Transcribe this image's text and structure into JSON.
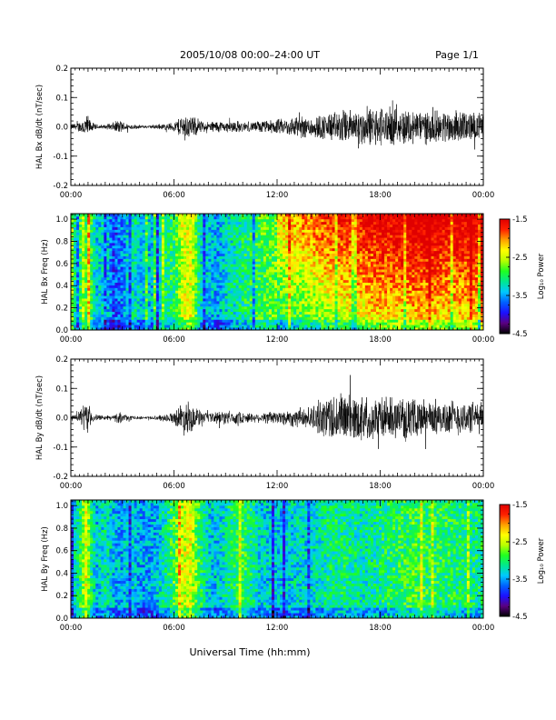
{
  "header": {
    "title": "2005/10/08   00:00–24:00 UT",
    "page": "Page 1/1"
  },
  "xaxis": {
    "label": "Universal Time (hh:mm)",
    "range_hours": [
      0,
      24
    ],
    "tick_hours": [
      0,
      6,
      12,
      18,
      24
    ],
    "tick_labels": [
      "00:00",
      "06:00",
      "12:00",
      "18:00",
      "00:00"
    ]
  },
  "colorbar": {
    "label": "Log₁₀ Power",
    "range": [
      -4.5,
      -1.5
    ],
    "ticks": [
      -1.5,
      -2.5,
      -3.5,
      -4.5
    ],
    "tick_labels": [
      "-1.5",
      "-2.5",
      "-3.5",
      "-4.5"
    ],
    "colormap": [
      "#000000",
      "#5a0080",
      "#1c10ff",
      "#0060ff",
      "#00c8ff",
      "#00e890",
      "#20ff20",
      "#b8ff00",
      "#ffff00",
      "#ffa000",
      "#ff2000",
      "#e00000"
    ]
  },
  "chart_data": [
    {
      "type": "line",
      "name": "bx-wave",
      "ylabel": "HAL Bx dB/dt (nT/sec)",
      "ylim": [
        -0.2,
        0.2
      ],
      "yticks": [
        -0.2,
        -0.1,
        0.0,
        0.1,
        0.2
      ],
      "ytick_labels": [
        "-0.2",
        "-0.1",
        "0.0",
        "0.1",
        "0.2"
      ],
      "envelope": {
        "hours": [
          0,
          0.3,
          0.6,
          0.9,
          1.2,
          1.5,
          2.0,
          2.5,
          2.8,
          3.2,
          3.6,
          4.0,
          4.5,
          5.0,
          5.5,
          6.0,
          6.3,
          6.6,
          7.0,
          7.4,
          7.8,
          8.2,
          8.6,
          9.0,
          9.5,
          10.0,
          10.5,
          11.0,
          11.5,
          12.0,
          12.5,
          13.0,
          13.5,
          14.0,
          14.5,
          15.0,
          15.5,
          16.0,
          16.5,
          17.0,
          17.5,
          18.0,
          18.5,
          19.0,
          19.5,
          20.0,
          20.5,
          21.0,
          21.5,
          22.0,
          22.5,
          23.0,
          23.5,
          24.0
        ],
        "amplitude": [
          0.01,
          0.012,
          0.02,
          0.045,
          0.015,
          0.008,
          0.006,
          0.015,
          0.022,
          0.012,
          0.008,
          0.006,
          0.005,
          0.008,
          0.01,
          0.015,
          0.03,
          0.045,
          0.035,
          0.025,
          0.015,
          0.018,
          0.02,
          0.015,
          0.022,
          0.015,
          0.015,
          0.02,
          0.02,
          0.025,
          0.025,
          0.035,
          0.035,
          0.035,
          0.04,
          0.045,
          0.05,
          0.055,
          0.055,
          0.06,
          0.06,
          0.065,
          0.06,
          0.055,
          0.06,
          0.055,
          0.055,
          0.05,
          0.05,
          0.055,
          0.05,
          0.05,
          0.045,
          0.045
        ]
      }
    },
    {
      "type": "heatmap",
      "name": "bx-spec",
      "ylabel": "HAL Bx Freq (Hz)",
      "ylim": [
        0,
        1.05
      ],
      "yticks": [
        0.0,
        0.2,
        0.4,
        0.6,
        0.8,
        1.0
      ],
      "ytick_labels": [
        "0.0",
        "0.2",
        "0.4",
        "0.6",
        "0.8",
        "1.0"
      ],
      "zlim": [
        -4.5,
        -1.5
      ],
      "level_profile": {
        "hours": [
          0,
          0.5,
          0.9,
          1.2,
          1.5,
          2.0,
          2.5,
          3.0,
          3.5,
          4.0,
          4.5,
          5.0,
          5.5,
          6.0,
          6.5,
          7.0,
          7.5,
          8.0,
          8.5,
          9.0,
          10.0,
          11.0,
          12.0,
          13.0,
          14.0,
          15.0,
          16.0,
          17.0,
          18.0,
          19.0,
          20.0,
          21.0,
          22.0,
          23.0,
          24.0
        ],
        "log_power": [
          -3.2,
          -3.0,
          -2.3,
          -3.0,
          -3.4,
          -3.2,
          -3.8,
          -3.6,
          -3.2,
          -3.3,
          -3.4,
          -3.3,
          -3.1,
          -3.0,
          -2.5,
          -2.4,
          -3.2,
          -3.4,
          -3.5,
          -3.3,
          -3.1,
          -2.9,
          -2.8,
          -2.6,
          -2.5,
          -2.3,
          -2.2,
          -2.1,
          -2.0,
          -2.0,
          -1.9,
          -1.9,
          -2.0,
          -2.0,
          -2.0
        ]
      }
    },
    {
      "type": "line",
      "name": "by-wave",
      "ylabel": "HAL By dB/dt (nT/sec)",
      "ylim": [
        -0.2,
        0.2
      ],
      "yticks": [
        -0.2,
        -0.1,
        0.0,
        0.1,
        0.2
      ],
      "ytick_labels": [
        "-0.2",
        "-0.1",
        "0.0",
        "0.1",
        "0.2"
      ],
      "envelope": {
        "hours": [
          0,
          0.3,
          0.6,
          0.9,
          1.2,
          1.5,
          2.0,
          2.5,
          2.8,
          3.2,
          3.6,
          4.0,
          4.5,
          5.0,
          5.5,
          6.0,
          6.3,
          6.6,
          7.0,
          7.4,
          7.8,
          8.2,
          8.6,
          9.0,
          9.5,
          10.0,
          10.5,
          11.0,
          11.5,
          12.0,
          12.5,
          13.0,
          13.5,
          14.0,
          14.5,
          15.0,
          15.5,
          16.0,
          16.5,
          17.0,
          17.5,
          18.0,
          18.5,
          19.0,
          19.5,
          20.0,
          20.5,
          21.0,
          21.5,
          22.0,
          22.5,
          23.0,
          23.5,
          24.0
        ],
        "amplitude": [
          0.008,
          0.01,
          0.025,
          0.06,
          0.02,
          0.01,
          0.006,
          0.01,
          0.018,
          0.01,
          0.006,
          0.005,
          0.005,
          0.007,
          0.012,
          0.018,
          0.04,
          0.055,
          0.045,
          0.03,
          0.015,
          0.015,
          0.025,
          0.02,
          0.022,
          0.018,
          0.015,
          0.015,
          0.02,
          0.022,
          0.025,
          0.03,
          0.03,
          0.035,
          0.055,
          0.075,
          0.08,
          0.08,
          0.075,
          0.07,
          0.07,
          0.07,
          0.065,
          0.065,
          0.06,
          0.06,
          0.06,
          0.055,
          0.055,
          0.06,
          0.055,
          0.055,
          0.05,
          0.05
        ]
      }
    },
    {
      "type": "heatmap",
      "name": "by-spec",
      "ylabel": "HAL By Freq (Hz)",
      "ylim": [
        0,
        1.05
      ],
      "yticks": [
        0.0,
        0.2,
        0.4,
        0.6,
        0.8,
        1.0
      ],
      "ytick_labels": [
        "0.0",
        "0.2",
        "0.4",
        "0.6",
        "0.8",
        "1.0"
      ],
      "zlim": [
        -4.5,
        -1.5
      ],
      "level_profile": {
        "hours": [
          0,
          0.5,
          0.9,
          1.2,
          1.5,
          2.0,
          2.5,
          3.0,
          3.5,
          4.0,
          4.5,
          5.0,
          5.5,
          6.0,
          6.5,
          7.0,
          7.5,
          8.0,
          8.5,
          9.0,
          10.0,
          11.0,
          12.0,
          13.0,
          14.0,
          15.0,
          16.0,
          17.0,
          18.0,
          19.0,
          20.0,
          21.0,
          22.0,
          23.0,
          24.0
        ],
        "log_power": [
          -3.3,
          -3.1,
          -2.4,
          -3.1,
          -3.4,
          -3.2,
          -3.4,
          -3.5,
          -3.3,
          -3.5,
          -3.5,
          -3.4,
          -3.2,
          -2.9,
          -2.5,
          -2.4,
          -3.0,
          -3.3,
          -3.4,
          -3.2,
          -2.9,
          -3.3,
          -3.4,
          -3.3,
          -3.3,
          -3.1,
          -3.1,
          -3.2,
          -3.1,
          -3.0,
          -2.9,
          -3.0,
          -3.0,
          -3.1,
          -3.1
        ]
      }
    }
  ]
}
